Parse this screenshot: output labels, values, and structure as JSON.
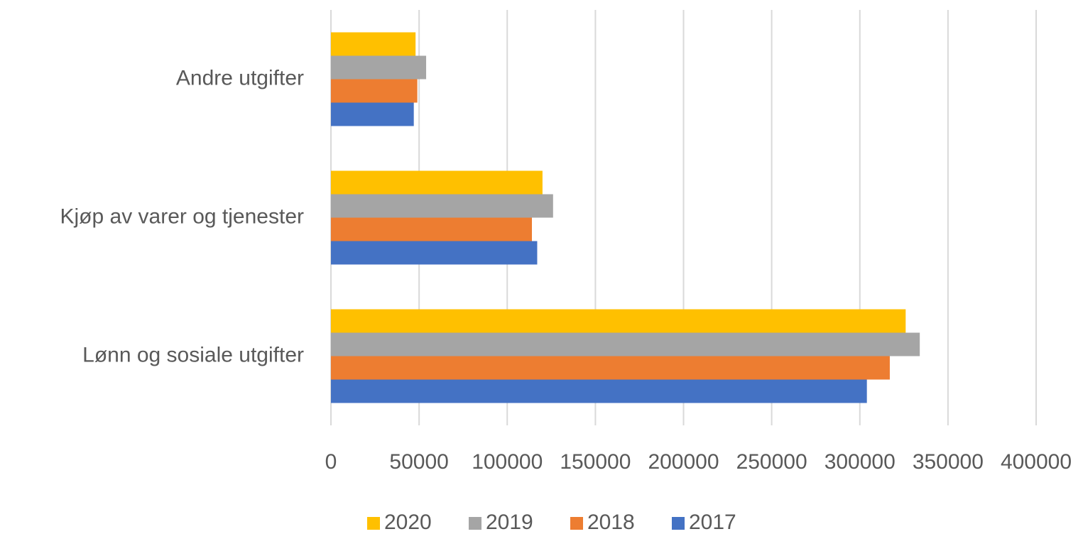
{
  "chart_data": {
    "type": "barh",
    "categories": [
      "Andre utgifter",
      "Kjøp av varer og tjenester",
      "Lønn og sosiale utgifter"
    ],
    "series": [
      {
        "name": "2020",
        "color": "#ffc000",
        "values": [
          48000,
          120000,
          326000
        ]
      },
      {
        "name": "2019",
        "color": "#a5a5a5",
        "values": [
          54000,
          126000,
          334000
        ]
      },
      {
        "name": "2018",
        "color": "#ed7d31",
        "values": [
          49000,
          114000,
          317000
        ]
      },
      {
        "name": "2017",
        "color": "#4472c4",
        "values": [
          47000,
          117000,
          304000
        ]
      }
    ],
    "xlim": [
      0,
      400000
    ],
    "xticks": [
      0,
      50000,
      100000,
      150000,
      200000,
      250000,
      300000,
      350000,
      400000
    ],
    "grid": true,
    "legend": "bottom"
  }
}
